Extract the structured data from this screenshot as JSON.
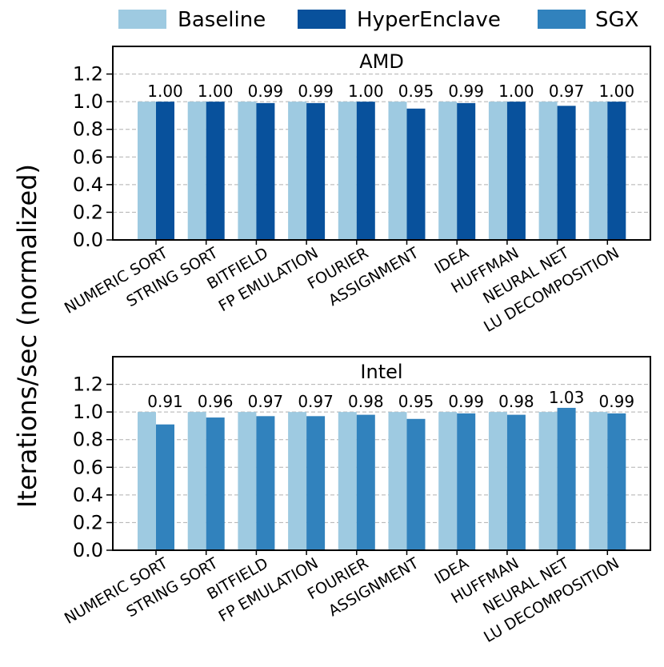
{
  "legend": [
    {
      "label": "Baseline",
      "color": "#9ecae1"
    },
    {
      "label": "HyperEnclave",
      "color": "#08519c"
    },
    {
      "label": "SGX",
      "color": "#3182bd"
    }
  ],
  "ylabel": "Iterations/sec (normalized)",
  "chart_data": [
    {
      "type": "bar",
      "title": "AMD",
      "categories": [
        "NUMERIC SORT",
        "STRING SORT",
        "BITFIELD",
        "FP EMULATION",
        "FOURIER",
        "ASSIGNMENT",
        "IDEA",
        "HUFFMAN",
        "NEURAL NET",
        "LU DECOMPOSITION"
      ],
      "series": [
        {
          "name": "Baseline",
          "color": "#9ecae1",
          "values": [
            1,
            1,
            1,
            1,
            1,
            1,
            1,
            1,
            1,
            1
          ]
        },
        {
          "name": "HyperEnclave",
          "color": "#08519c",
          "values": [
            1.0,
            1.0,
            0.99,
            0.99,
            1.0,
            0.95,
            0.99,
            1.0,
            0.97,
            1.0
          ]
        }
      ],
      "data_labels": [
        "1.00",
        "1.00",
        "0.99",
        "0.99",
        "1.00",
        "0.95",
        "0.99",
        "1.00",
        "0.97",
        "1.00"
      ],
      "yticks": [
        "0.0",
        "0.2",
        "0.4",
        "0.6",
        "0.8",
        "1.0",
        "1.2"
      ],
      "ylim": [
        0,
        1.4
      ],
      "grid": "y-dashed"
    },
    {
      "type": "bar",
      "title": "Intel",
      "categories": [
        "NUMERIC SORT",
        "STRING SORT",
        "BITFIELD",
        "FP EMULATION",
        "FOURIER",
        "ASSIGNMENT",
        "IDEA",
        "HUFFMAN",
        "NEURAL NET",
        "LU DECOMPOSITION"
      ],
      "series": [
        {
          "name": "Baseline",
          "color": "#9ecae1",
          "values": [
            1,
            1,
            1,
            1,
            1,
            1,
            1,
            1,
            1,
            1
          ]
        },
        {
          "name": "SGX",
          "color": "#3182bd",
          "values": [
            0.91,
            0.96,
            0.97,
            0.97,
            0.98,
            0.95,
            0.99,
            0.98,
            1.03,
            0.99
          ]
        }
      ],
      "data_labels": [
        "0.91",
        "0.96",
        "0.97",
        "0.97",
        "0.98",
        "0.95",
        "0.99",
        "0.98",
        "1.03",
        "0.99"
      ],
      "yticks": [
        "0.0",
        "0.2",
        "0.4",
        "0.6",
        "0.8",
        "1.0",
        "1.2"
      ],
      "ylim": [
        0,
        1.4
      ],
      "grid": "y-dashed"
    }
  ]
}
